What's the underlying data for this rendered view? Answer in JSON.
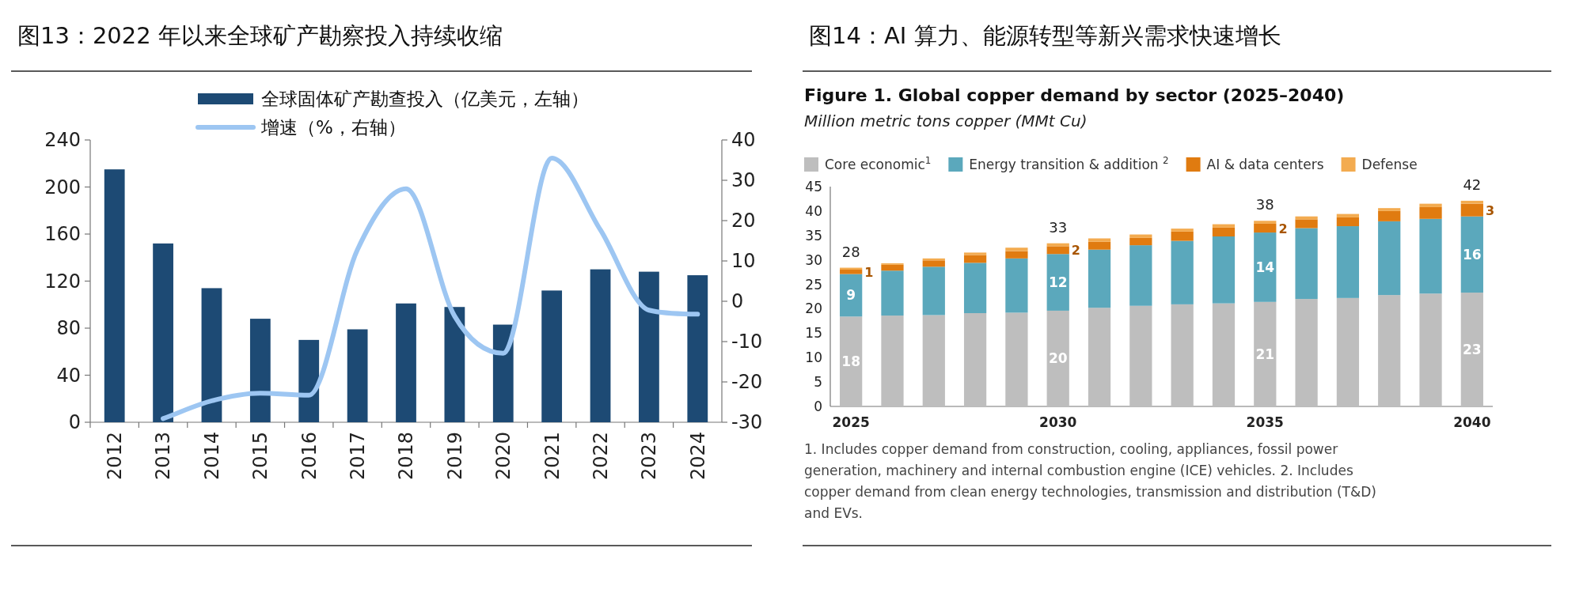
{
  "chart_data": [
    {
      "type": "bar",
      "title": "图13：2022 年以来全球矿产勘察投入持续收缩",
      "categories": [
        "2012",
        "2013",
        "2014",
        "2015",
        "2016",
        "2017",
        "2018",
        "2019",
        "2020",
        "2021",
        "2022",
        "2023",
        "2024"
      ],
      "series": [
        {
          "name": "全球固体矿产勘查投入（亿美元，左轴）",
          "color": "#1d4a74",
          "values": [
            215,
            152,
            114,
            88,
            70,
            79,
            101,
            98,
            83,
            112,
            130,
            128,
            125
          ]
        },
        {
          "name": "增速（%，右轴）",
          "type": "line",
          "axis": "y2",
          "color": "#9dc6f2",
          "values": [
            null,
            -29.1,
            -24.7,
            -22.8,
            -23.3,
            12.8,
            27.9,
            -3.7,
            -12.9,
            35.5,
            17.7,
            -2.2,
            -3.2
          ]
        }
      ],
      "ylim": [
        0,
        240
      ],
      "yticks": [
        0,
        40,
        80,
        120,
        160,
        200,
        240
      ],
      "y2lim": [
        -30,
        40
      ],
      "y2ticks": [
        -30,
        -20,
        -10,
        0,
        10,
        20,
        30,
        40
      ],
      "legend": "top"
    },
    {
      "type": "bar",
      "stacked": true,
      "title": "图14：AI 算力、能源转型等新兴需求快速增长",
      "subtitle": "Figure 1. Global copper demand by sector (2025–2040)",
      "ylabel": "Million metric tons copper (MMt Cu)",
      "categories": [
        "2025",
        null,
        null,
        null,
        null,
        "2030",
        null,
        null,
        null,
        null,
        "2035",
        null,
        null,
        null,
        null,
        "2040"
      ],
      "series": [
        {
          "name": "Core economic$^{1}$",
          "color": "#bebebe",
          "values": [
            18.4,
            18.6,
            18.7,
            19.1,
            19.2,
            19.6,
            20.2,
            20.6,
            20.9,
            21.1,
            21.4,
            22.0,
            22.2,
            22.8,
            23.1,
            23.3
          ],
          "value_labels": [
            "18",
            null,
            null,
            null,
            null,
            "20",
            null,
            null,
            null,
            null,
            "21",
            null,
            null,
            null,
            null,
            "23"
          ]
        },
        {
          "name": "Energy transition & addition $^{2}$",
          "color": "#5ba8bc",
          "values": [
            8.7,
            9.2,
            9.9,
            10.3,
            11.1,
            11.6,
            11.9,
            12.4,
            13.0,
            13.7,
            14.2,
            14.5,
            14.7,
            15.1,
            15.3,
            15.6
          ],
          "value_labels": [
            "9",
            null,
            null,
            null,
            null,
            "12",
            null,
            null,
            null,
            null,
            "14",
            null,
            null,
            null,
            null,
            "16"
          ]
        },
        {
          "name": "AI & data centers",
          "color": "#e07b10",
          "values": [
            0.9,
            1.2,
            1.3,
            1.6,
            1.5,
            1.6,
            1.6,
            1.5,
            1.9,
            1.8,
            1.8,
            1.8,
            1.8,
            2.1,
            2.4,
            2.6
          ],
          "value_labels": [
            "1",
            null,
            null,
            null,
            null,
            "2",
            null,
            null,
            null,
            null,
            "2",
            null,
            null,
            null,
            null,
            "3"
          ]
        },
        {
          "name": "Defense",
          "color": "#f3ab50",
          "values": [
            0.4,
            0.3,
            0.4,
            0.5,
            0.7,
            0.6,
            0.7,
            0.7,
            0.6,
            0.7,
            0.6,
            0.6,
            0.7,
            0.6,
            0.7,
            0.6
          ]
        }
      ],
      "totals": [
        "28",
        null,
        null,
        null,
        null,
        "33",
        null,
        null,
        null,
        null,
        "38",
        null,
        null,
        null,
        null,
        "42"
      ],
      "ylim": [
        0,
        45
      ],
      "yticks": [
        0,
        5,
        10,
        15,
        20,
        25,
        30,
        35,
        40,
        45
      ],
      "legend": "top left",
      "annotations": [
        "1. Includes copper demand from construction, cooling, appliances, fossil power generation, machinery and internal combustion engine (ICE) vehicles. 2. Includes copper demand from clean energy technologies, transmission and distribution (T&D) and EVs."
      ]
    }
  ]
}
